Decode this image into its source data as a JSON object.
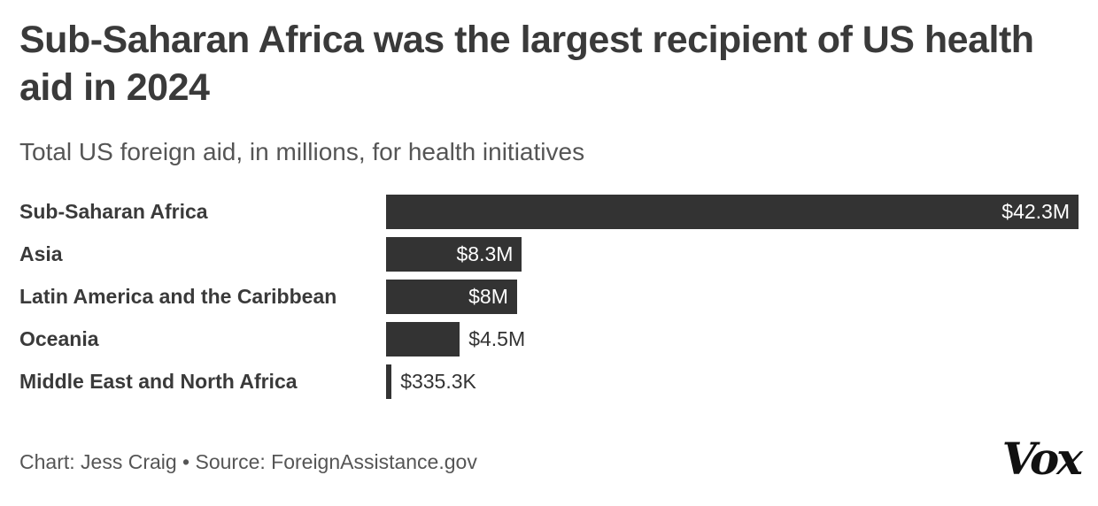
{
  "header": {
    "title": "Sub-Saharan Africa was the largest recipient of US health aid in 2024",
    "subtitle": "Total US foreign aid, in millions, for health initiatives"
  },
  "footer": {
    "credit": "Chart: Jess Craig • Source: ForeignAssistance.gov",
    "logo_text": "Vox"
  },
  "colors": {
    "bar": "#333333",
    "label_inside": "#ffffff",
    "label_outside": "#333333"
  },
  "chart_data": {
    "type": "bar",
    "orientation": "horizontal",
    "title": "Sub-Saharan Africa was the largest recipient of US health aid in 2024",
    "subtitle": "Total US foreign aid, in millions, for health initiatives",
    "xlabel": "",
    "ylabel": "",
    "grid": false,
    "legend": "none",
    "categories": [
      "Sub-Saharan Africa",
      "Asia",
      "Latin America and the Caribbean",
      "Oceania",
      "Middle East and North Africa"
    ],
    "values": [
      42.3,
      8.3,
      8,
      4.5,
      0.3353
    ],
    "value_labels": [
      "$42.3M",
      "$8.3M",
      "$8M",
      "$4.5M",
      "$335.3K"
    ],
    "xlim": [
      0,
      42.3
    ]
  }
}
